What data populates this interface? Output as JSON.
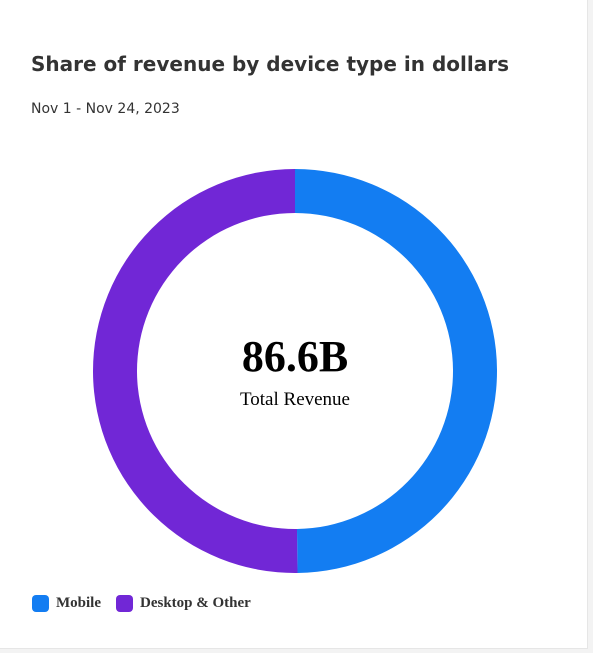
{
  "card": {
    "title": "Share of revenue by device type in dollars",
    "date_range": "Nov 1 - Nov 24, 2023"
  },
  "chart_data": {
    "type": "pie",
    "variant": "donut",
    "center_value": "86.6B",
    "center_label": "Total Revenue",
    "categories": [
      "Mobile",
      "Desktop & Other"
    ],
    "values": [
      49.8,
      50.2
    ],
    "colors": [
      "#137df2",
      "#7127d6"
    ],
    "legend_position": "bottom-left"
  }
}
